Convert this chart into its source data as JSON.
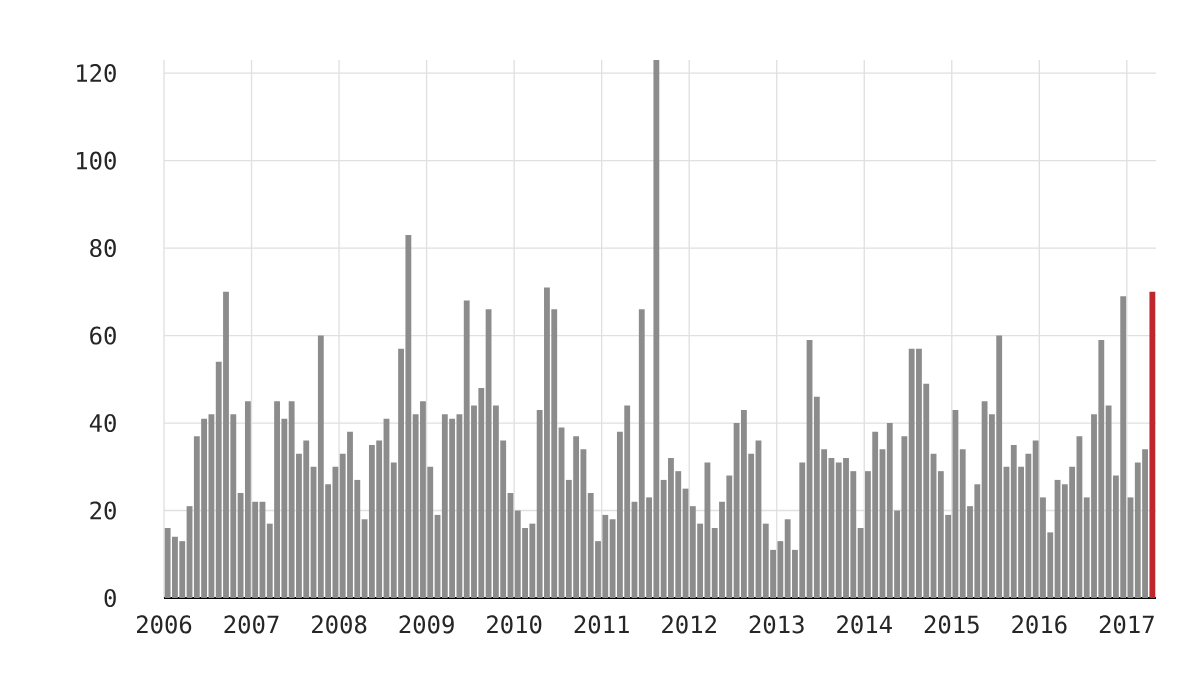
{
  "chart_data": {
    "type": "bar",
    "x": [
      "2006-01",
      "2006-02",
      "2006-03",
      "2006-04",
      "2006-05",
      "2006-06",
      "2006-07",
      "2006-08",
      "2006-09",
      "2006-10",
      "2006-11",
      "2006-12",
      "2007-01",
      "2007-02",
      "2007-03",
      "2007-04",
      "2007-05",
      "2007-06",
      "2007-07",
      "2007-08",
      "2007-09",
      "2007-10",
      "2007-11",
      "2007-12",
      "2008-01",
      "2008-02",
      "2008-03",
      "2008-04",
      "2008-05",
      "2008-06",
      "2008-07",
      "2008-08",
      "2008-09",
      "2008-10",
      "2008-11",
      "2008-12",
      "2009-01",
      "2009-02",
      "2009-03",
      "2009-04",
      "2009-05",
      "2009-06",
      "2009-07",
      "2009-08",
      "2009-09",
      "2009-10",
      "2009-11",
      "2009-12",
      "2010-01",
      "2010-02",
      "2010-03",
      "2010-04",
      "2010-05",
      "2010-06",
      "2010-07",
      "2010-08",
      "2010-09",
      "2010-10",
      "2010-11",
      "2010-12",
      "2011-01",
      "2011-02",
      "2011-03",
      "2011-04",
      "2011-05",
      "2011-06",
      "2011-07",
      "2011-08",
      "2011-09",
      "2011-10",
      "2011-11",
      "2011-12",
      "2012-01",
      "2012-02",
      "2012-03",
      "2012-04",
      "2012-05",
      "2012-06",
      "2012-07",
      "2012-08",
      "2012-09",
      "2012-10",
      "2012-11",
      "2012-12",
      "2013-01",
      "2013-02",
      "2013-03",
      "2013-04",
      "2013-05",
      "2013-06",
      "2013-07",
      "2013-08",
      "2013-09",
      "2013-10",
      "2013-11",
      "2013-12",
      "2014-01",
      "2014-02",
      "2014-03",
      "2014-04",
      "2014-05",
      "2014-06",
      "2014-07",
      "2014-08",
      "2014-09",
      "2014-10",
      "2014-11",
      "2014-12",
      "2015-01",
      "2015-02",
      "2015-03",
      "2015-04",
      "2015-05",
      "2015-06",
      "2015-07",
      "2015-08",
      "2015-09",
      "2015-10",
      "2015-11",
      "2015-12",
      "2016-01",
      "2016-02",
      "2016-03",
      "2016-04",
      "2016-05",
      "2016-06",
      "2016-07",
      "2016-08",
      "2016-09",
      "2016-10",
      "2016-11",
      "2016-12",
      "2017-01",
      "2017-02",
      "2017-03",
      "2017-04"
    ],
    "values": [
      16,
      14,
      13,
      21,
      37,
      41,
      42,
      54,
      70,
      42,
      24,
      45,
      22,
      22,
      17,
      45,
      41,
      45,
      33,
      36,
      30,
      60,
      26,
      30,
      33,
      38,
      27,
      18,
      35,
      36,
      41,
      31,
      57,
      83,
      42,
      45,
      30,
      19,
      42,
      41,
      42,
      68,
      44,
      48,
      66,
      44,
      36,
      24,
      20,
      16,
      17,
      43,
      71,
      66,
      39,
      27,
      37,
      34,
      24,
      13,
      19,
      18,
      38,
      44,
      22,
      66,
      23,
      123,
      27,
      32,
      29,
      25,
      21,
      17,
      31,
      16,
      22,
      28,
      40,
      43,
      33,
      36,
      17,
      11,
      13,
      18,
      11,
      31,
      59,
      46,
      34,
      32,
      31,
      32,
      29,
      16,
      29,
      38,
      34,
      40,
      20,
      37,
      57,
      57,
      49,
      33,
      29,
      19,
      43,
      34,
      21,
      26,
      45,
      42,
      60,
      30,
      35,
      30,
      33,
      36,
      23,
      15,
      27,
      26,
      30,
      37,
      23,
      42,
      59,
      44,
      28,
      69,
      23,
      31,
      34,
      70
    ],
    "colors": [
      "#8c8c8c",
      "#8c8c8c",
      "#8c8c8c",
      "#8c8c8c",
      "#8c8c8c",
      "#8c8c8c",
      "#8c8c8c",
      "#8c8c8c",
      "#8c8c8c",
      "#8c8c8c",
      "#8c8c8c",
      "#8c8c8c",
      "#8c8c8c",
      "#8c8c8c",
      "#8c8c8c",
      "#8c8c8c",
      "#8c8c8c",
      "#8c8c8c",
      "#8c8c8c",
      "#8c8c8c",
      "#8c8c8c",
      "#8c8c8c",
      "#8c8c8c",
      "#8c8c8c",
      "#8c8c8c",
      "#8c8c8c",
      "#8c8c8c",
      "#8c8c8c",
      "#8c8c8c",
      "#8c8c8c",
      "#8c8c8c",
      "#8c8c8c",
      "#8c8c8c",
      "#8c8c8c",
      "#8c8c8c",
      "#8c8c8c",
      "#8c8c8c",
      "#8c8c8c",
      "#8c8c8c",
      "#8c8c8c",
      "#8c8c8c",
      "#8c8c8c",
      "#8c8c8c",
      "#8c8c8c",
      "#8c8c8c",
      "#8c8c8c",
      "#8c8c8c",
      "#8c8c8c",
      "#8c8c8c",
      "#8c8c8c",
      "#8c8c8c",
      "#8c8c8c",
      "#8c8c8c",
      "#8c8c8c",
      "#8c8c8c",
      "#8c8c8c",
      "#8c8c8c",
      "#8c8c8c",
      "#8c8c8c",
      "#8c8c8c",
      "#8c8c8c",
      "#8c8c8c",
      "#8c8c8c",
      "#8c8c8c",
      "#8c8c8c",
      "#8c8c8c",
      "#8c8c8c",
      "#8c8c8c",
      "#8c8c8c",
      "#8c8c8c",
      "#8c8c8c",
      "#8c8c8c",
      "#8c8c8c",
      "#8c8c8c",
      "#8c8c8c",
      "#8c8c8c",
      "#8c8c8c",
      "#8c8c8c",
      "#8c8c8c",
      "#8c8c8c",
      "#8c8c8c",
      "#8c8c8c",
      "#8c8c8c",
      "#8c8c8c",
      "#8c8c8c",
      "#8c8c8c",
      "#8c8c8c",
      "#8c8c8c",
      "#8c8c8c",
      "#8c8c8c",
      "#8c8c8c",
      "#8c8c8c",
      "#8c8c8c",
      "#8c8c8c",
      "#8c8c8c",
      "#8c8c8c",
      "#8c8c8c",
      "#8c8c8c",
      "#8c8c8c",
      "#8c8c8c",
      "#8c8c8c",
      "#8c8c8c",
      "#8c8c8c",
      "#8c8c8c",
      "#8c8c8c",
      "#8c8c8c",
      "#8c8c8c",
      "#8c8c8c",
      "#8c8c8c",
      "#8c8c8c",
      "#8c8c8c",
      "#8c8c8c",
      "#8c8c8c",
      "#8c8c8c",
      "#8c8c8c",
      "#8c8c8c",
      "#8c8c8c",
      "#8c8c8c",
      "#8c8c8c",
      "#8c8c8c",
      "#8c8c8c",
      "#8c8c8c",
      "#8c8c8c",
      "#8c8c8c",
      "#8c8c8c",
      "#8c8c8c",
      "#8c8c8c",
      "#8c8c8c",
      "#8c8c8c",
      "#8c8c8c",
      "#8c8c8c",
      "#8c8c8c",
      "#8c8c8c",
      "#8c8c8c",
      "#8c8c8c",
      "#c0272d"
    ],
    "xlim": [
      "2006-01",
      "2017-05"
    ],
    "xticks": [
      "2006",
      "2007",
      "2008",
      "2009",
      "2010",
      "2011",
      "2012",
      "2013",
      "2014",
      "2015",
      "2016",
      "2017"
    ],
    "ylim": [
      0,
      123
    ],
    "yticks": [
      0,
      20,
      40,
      60,
      80,
      100,
      120
    ],
    "grid": true
  }
}
